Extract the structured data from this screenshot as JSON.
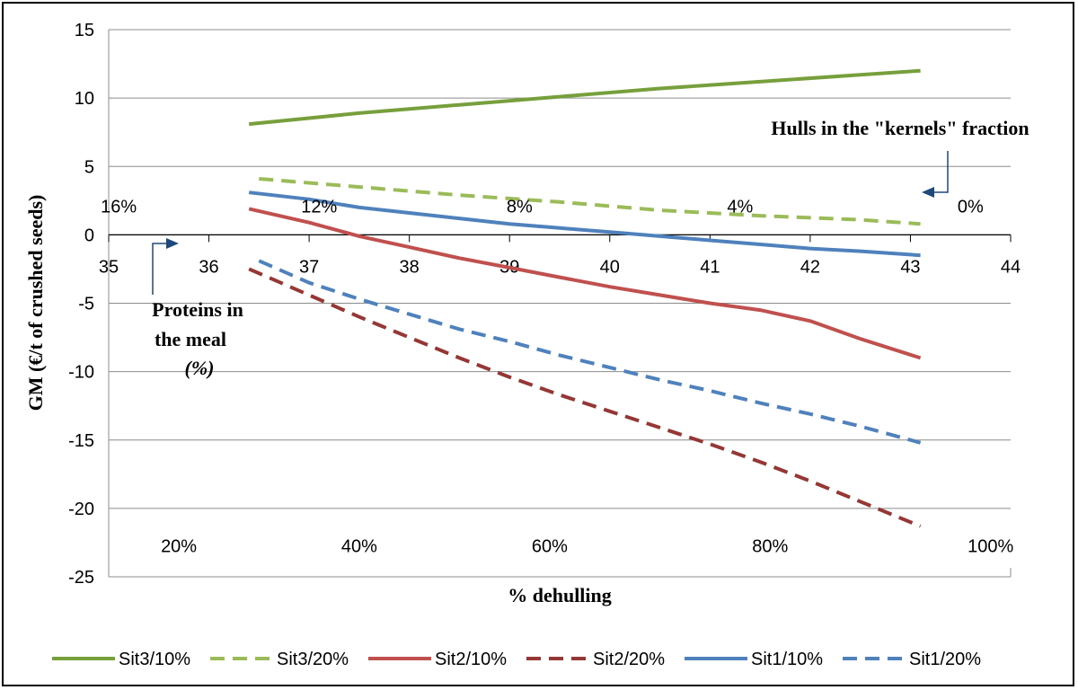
{
  "chart_data": {
    "type": "line",
    "title": "",
    "xlabel": "% dehulling",
    "ylabel": "GM (€/t of crushed seeds)",
    "xlim": [
      35,
      44
    ],
    "ylim": [
      -25,
      15
    ],
    "x_ticks": [
      "35",
      "36",
      "37",
      "38",
      "39",
      "40",
      "41",
      "42",
      "43",
      "44"
    ],
    "y_ticks": [
      "15",
      "10",
      "5",
      "0",
      "-5",
      "-10",
      "-15",
      "-20",
      "-25"
    ],
    "grid": "horizontal",
    "legend_position": "bottom",
    "secondary_axes": {
      "hulls_labels": [
        "16%",
        "12%",
        "8%",
        "4%",
        "0%"
      ],
      "hulls_label_x": [
        35.1,
        37.1,
        39.1,
        41.3,
        43.6
      ],
      "dehulling_labels": [
        "20%",
        "40%",
        "60%",
        "80%",
        "100%"
      ],
      "dehulling_label_x": [
        35.7,
        37.5,
        39.4,
        41.6,
        43.8
      ]
    },
    "annotations": {
      "hulls": "Hulls in the \"kernels\" fraction",
      "proteins_line1": "Proteins in",
      "proteins_line2": "the meal",
      "proteins_line3": "(%)"
    },
    "series": [
      {
        "name": "Sit3/10%",
        "color": "#77a03c",
        "dash": "solid",
        "x": [
          36.4,
          37.5,
          38.5,
          39.5,
          40.5,
          41.5,
          42.5,
          43.1
        ],
        "y": [
          8.1,
          8.9,
          9.5,
          10.1,
          10.7,
          11.2,
          11.7,
          12.0
        ]
      },
      {
        "name": "Sit3/20%",
        "color": "#9bbb59",
        "dash": "dashed",
        "x": [
          36.5,
          37.5,
          38.5,
          39.5,
          40.5,
          41.5,
          42.5,
          43.1
        ],
        "y": [
          4.1,
          3.5,
          2.9,
          2.4,
          1.8,
          1.4,
          1.1,
          0.8
        ]
      },
      {
        "name": "Sit2/10%",
        "color": "#c0504d",
        "dash": "solid",
        "x": [
          36.4,
          37.0,
          37.5,
          38.0,
          38.5,
          39.0,
          39.5,
          40.0,
          40.5,
          41.0,
          41.5,
          42.0,
          42.5,
          43.1
        ],
        "y": [
          1.9,
          0.9,
          -0.1,
          -0.9,
          -1.7,
          -2.4,
          -3.1,
          -3.8,
          -4.4,
          -5.0,
          -5.5,
          -6.3,
          -7.6,
          -9.0
        ]
      },
      {
        "name": "Sit2/20%",
        "color": "#953735",
        "dash": "dashed",
        "x": [
          36.4,
          37.0,
          37.5,
          38.0,
          38.5,
          39.0,
          39.5,
          40.0,
          40.5,
          41.0,
          41.5,
          42.0,
          42.5,
          43.1
        ],
        "y": [
          -2.5,
          -4.4,
          -6.0,
          -7.5,
          -9.0,
          -10.4,
          -11.7,
          -12.9,
          -14.1,
          -15.3,
          -16.6,
          -18.0,
          -19.5,
          -21.3
        ]
      },
      {
        "name": "Sit1/10%",
        "color": "#4f81bd",
        "dash": "solid",
        "x": [
          36.4,
          37.0,
          37.5,
          38.0,
          38.5,
          39.0,
          39.5,
          40.0,
          40.5,
          41.0,
          41.5,
          42.0,
          42.5,
          43.1
        ],
        "y": [
          3.1,
          2.6,
          2.0,
          1.6,
          1.2,
          0.8,
          0.5,
          0.2,
          -0.1,
          -0.4,
          -0.7,
          -1.0,
          -1.2,
          -1.5
        ]
      },
      {
        "name": "Sit1/20%",
        "color": "#4f81bd",
        "dash": "dashed",
        "x": [
          36.5,
          37.0,
          37.5,
          38.0,
          38.5,
          39.0,
          39.5,
          40.0,
          40.5,
          41.0,
          41.5,
          42.0,
          42.5,
          43.1
        ],
        "y": [
          -1.9,
          -3.5,
          -4.7,
          -5.8,
          -6.9,
          -7.8,
          -8.8,
          -9.7,
          -10.6,
          -11.4,
          -12.3,
          -13.1,
          -14.0,
          -15.2
        ]
      }
    ]
  }
}
